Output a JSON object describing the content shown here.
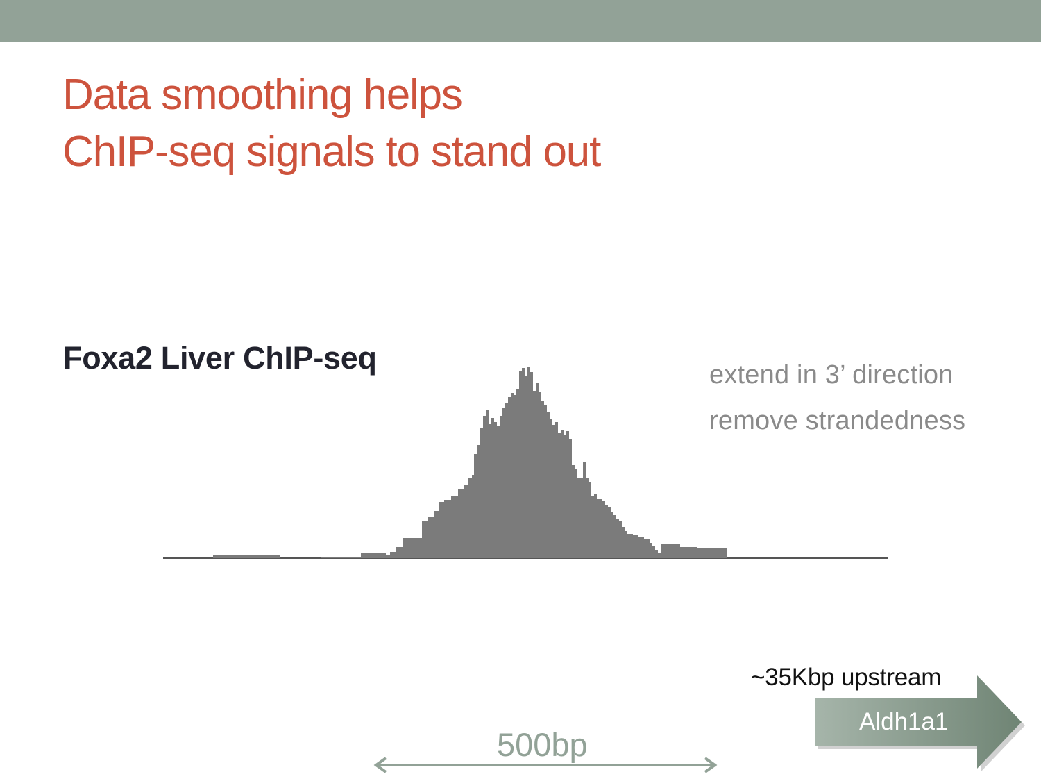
{
  "slide": {
    "title_line1": "Data smoothing helps",
    "title_line2": "ChIP-seq signals to stand out"
  },
  "track": {
    "label": "Foxa2 Liver ChIP-seq",
    "notes": [
      "extend in 3’ direction",
      "remove strandedness"
    ]
  },
  "gene": {
    "name": "Aldh1a1",
    "distance_label": "~35Kbp upstream"
  },
  "scale": {
    "label": "500bp"
  },
  "colors": {
    "accent_title": "#cd533d",
    "bar": "#92a297",
    "signal": "#7b7b7b",
    "gene_arrow": "#7d9182"
  }
}
